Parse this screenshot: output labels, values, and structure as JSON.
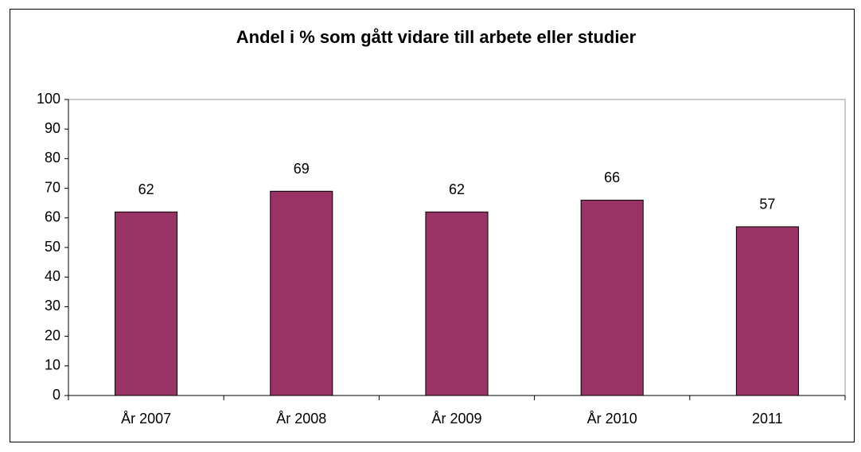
{
  "chart_data": {
    "type": "bar",
    "title": "Andel i % som gått vidare till arbete eller studier",
    "categories": [
      "År 2007",
      "År 2008",
      "År 2009",
      "År 2010",
      "2011"
    ],
    "values": [
      62,
      69,
      62,
      66,
      57
    ],
    "color": "#993366",
    "ylim": [
      0,
      100
    ],
    "yticks": [
      0,
      10,
      20,
      30,
      40,
      50,
      60,
      70,
      80,
      90,
      100
    ],
    "grid": false
  }
}
